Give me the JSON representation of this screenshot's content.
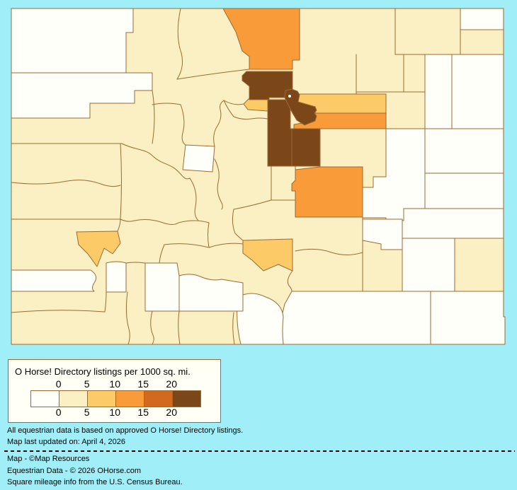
{
  "legend": {
    "title": "O Horse! Directory listings per 1000 sq. mi.",
    "tick_labels": [
      "0",
      "5",
      "10",
      "15",
      "20"
    ],
    "palette": {
      "level0": "#FDFFF8",
      "level1": "#FAF0C3",
      "level2": "#FCCB68",
      "level3": "#F99B38",
      "level4": "#D2691E",
      "level5": "#7C4718"
    },
    "swatch_order": [
      "level0",
      "level1",
      "level2",
      "level3",
      "level4",
      "level5"
    ]
  },
  "map": {
    "description": "Colorado counties choropleth of equestrian directory listing density"
  },
  "footer": {
    "line1": "All equestrian data is based on approved O Horse! Directory listings.",
    "line2": "Map last updated on: April 4, 2026",
    "line3": "Map - ©Map Resources",
    "line4": "Equestrian Data - © 2026 OHorse.com",
    "line5": "Square mileage info from the U.S. Census Bureau."
  },
  "colors": {
    "page_background": "#A0EFF8",
    "panel_background": "#FFFFF6",
    "line": "#9C6B33",
    "text": "#000000"
  }
}
